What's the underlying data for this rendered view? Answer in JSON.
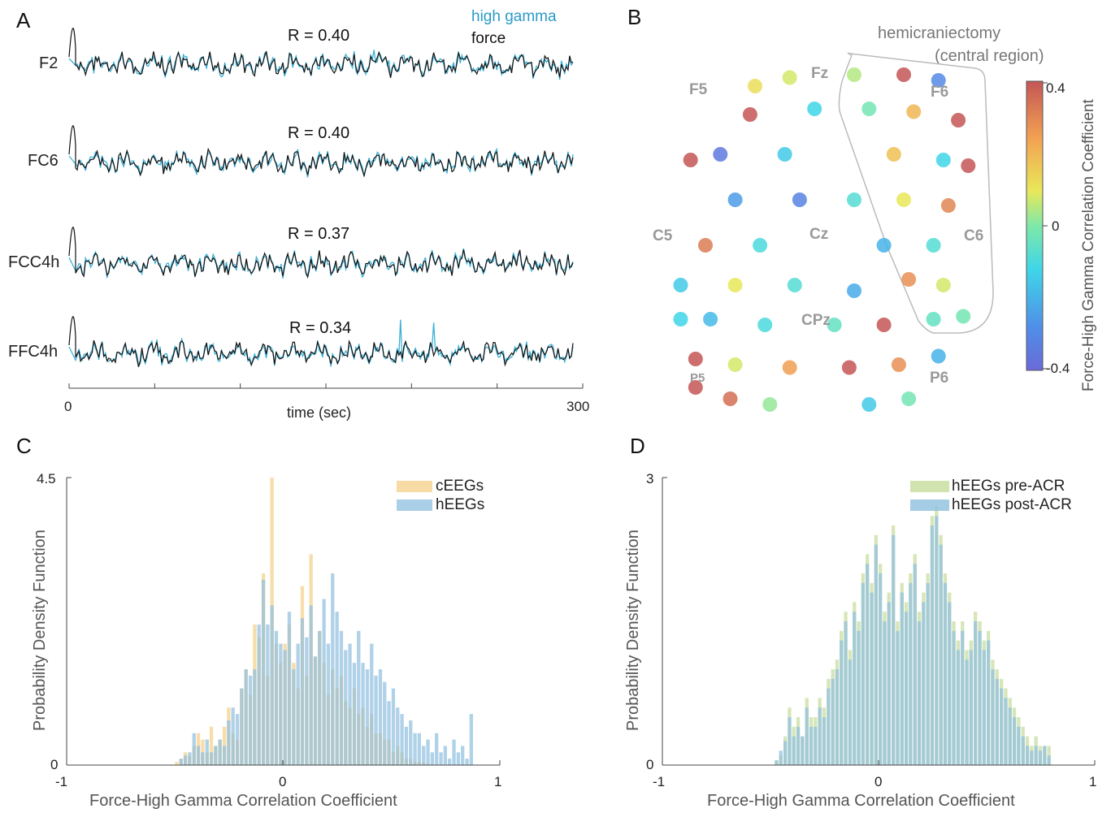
{
  "colors": {
    "high_gamma": "#3ab0d6",
    "force": "#111111",
    "ceegs": "#f4cf86",
    "heegs": "#8fbfdf",
    "pre_acr": "#c6dc9a",
    "post_acr": "#8fbfdf",
    "region_outline": "#bbbbbb"
  },
  "panel_a": {
    "letter": "A",
    "legend_high_gamma": "high gamma",
    "legend_force": "force",
    "traces": [
      {
        "label": "F2",
        "r": "R = 0.40"
      },
      {
        "label": "FC6",
        "r": "R = 0.40"
      },
      {
        "label": "FCC4h",
        "r": "R = 0.37"
      },
      {
        "label": "FFC4h",
        "r": "R = 0.34"
      }
    ],
    "x_tick_start": "0",
    "x_tick_end": "300",
    "xlabel": "time (sec)"
  },
  "panel_b": {
    "letter": "B",
    "region_label_1": "hemicraniectomy",
    "region_label_2": "(central region)",
    "colorbar_title": "Force-High Gamma Correlation Coefficient",
    "colorbar_ticks": [
      "0.4",
      "0",
      "-0.4"
    ],
    "colorbar_range": [
      -0.4,
      0.4
    ],
    "electrode_labels": [
      "Fz",
      "F5",
      "F6",
      "C5",
      "Cz",
      "C6",
      "CPz",
      "P5",
      "P6"
    ],
    "electrodes": [
      {
        "col": 3,
        "row": 0,
        "v": 0.05
      },
      {
        "col": 4,
        "row": 0,
        "v": 0.42
      },
      {
        "col": 4.7,
        "row": 0.1,
        "v": -0.3
      },
      {
        "col": 1,
        "row": 0.2,
        "v": 0.12
      },
      {
        "col": 1.7,
        "row": 0.05,
        "v": 0.08
      },
      {
        "col": 0.9,
        "row": 0.7,
        "v": 0.45
      },
      {
        "col": 2.2,
        "row": 0.6,
        "v": -0.12
      },
      {
        "col": 3.3,
        "row": 0.6,
        "v": -0.02
      },
      {
        "col": 4.2,
        "row": 0.65,
        "v": 0.2
      },
      {
        "col": 5.1,
        "row": 0.8,
        "v": 0.43
      },
      {
        "col": -0.3,
        "row": 1.5,
        "v": 0.4
      },
      {
        "col": 0.3,
        "row": 1.4,
        "v": -0.35
      },
      {
        "col": 1.6,
        "row": 1.4,
        "v": -0.15
      },
      {
        "col": 3.8,
        "row": 1.4,
        "v": 0.18
      },
      {
        "col": 4.8,
        "row": 1.5,
        "v": -0.12
      },
      {
        "col": 5.3,
        "row": 1.6,
        "v": 0.45
      },
      {
        "col": 0.6,
        "row": 2.2,
        "v": -0.25
      },
      {
        "col": 1.9,
        "row": 2.2,
        "v": -0.32
      },
      {
        "col": 3.0,
        "row": 2.2,
        "v": -0.08
      },
      {
        "col": 4.0,
        "row": 2.2,
        "v": 0.1
      },
      {
        "col": 4.9,
        "row": 2.3,
        "v": 0.3
      },
      {
        "col": 0.0,
        "row": 3.0,
        "v": 0.32
      },
      {
        "col": 1.1,
        "row": 3.0,
        "v": -0.1
      },
      {
        "col": 3.6,
        "row": 3.0,
        "v": -0.2
      },
      {
        "col": 4.6,
        "row": 3.0,
        "v": -0.08
      },
      {
        "col": -0.5,
        "row": 3.7,
        "v": -0.15
      },
      {
        "col": 0.6,
        "row": 3.7,
        "v": 0.1
      },
      {
        "col": 1.8,
        "row": 3.7,
        "v": -0.08
      },
      {
        "col": 3.0,
        "row": 3.8,
        "v": -0.22
      },
      {
        "col": 4.1,
        "row": 3.6,
        "v": 0.28
      },
      {
        "col": 4.8,
        "row": 3.7,
        "v": 0.08
      },
      {
        "col": -0.5,
        "row": 4.3,
        "v": -0.12
      },
      {
        "col": 0.1,
        "row": 4.3,
        "v": -0.18
      },
      {
        "col": 1.2,
        "row": 4.4,
        "v": -0.1
      },
      {
        "col": 2.6,
        "row": 4.4,
        "v": -0.05
      },
      {
        "col": 3.6,
        "row": 4.4,
        "v": 0.42
      },
      {
        "col": 4.6,
        "row": 4.3,
        "v": -0.05
      },
      {
        "col": 5.2,
        "row": 4.25,
        "v": -0.02
      },
      {
        "col": -0.2,
        "row": 5.0,
        "v": 0.45
      },
      {
        "col": 0.6,
        "row": 5.1,
        "v": 0.08
      },
      {
        "col": 1.7,
        "row": 5.15,
        "v": 0.25
      },
      {
        "col": 2.9,
        "row": 5.15,
        "v": 0.42
      },
      {
        "col": 3.9,
        "row": 5.1,
        "v": 0.28
      },
      {
        "col": 4.7,
        "row": 4.95,
        "v": -0.2
      },
      {
        "col": -0.2,
        "row": 5.5,
        "v": 0.45
      },
      {
        "col": 0.5,
        "row": 5.7,
        "v": 0.35
      },
      {
        "col": 1.3,
        "row": 5.8,
        "v": 0.02
      },
      {
        "col": 3.3,
        "row": 5.8,
        "v": -0.15
      },
      {
        "col": 4.1,
        "row": 5.7,
        "v": -0.02
      }
    ]
  },
  "chart_data": [
    {
      "type": "bar",
      "panel": "C",
      "xlabel": "Force-High Gamma Correlation Coefficient",
      "ylabel": "Probability Density Function",
      "xlim": [
        -1,
        1
      ],
      "ylim": [
        0,
        4.5
      ],
      "x_ticks": [
        "-1",
        "0",
        "1"
      ],
      "y_ticks": [
        "0",
        "4.5"
      ],
      "bin_width": 0.02,
      "bin_start": -0.5,
      "series": [
        {
          "name": "cEEGs",
          "values": [
            0.05,
            0.1,
            0.2,
            0.15,
            0.3,
            0.5,
            0.4,
            0.2,
            0.6,
            0.3,
            0.4,
            0.6,
            0.9,
            0.5,
            0.4,
            1.2,
            1.5,
            1.1,
            2.2,
            2.0,
            3.0,
            1.4,
            4.5,
            1.9,
            1.6,
            1.9,
            2.2,
            1.6,
            1.2,
            2.8,
            1.4,
            3.3,
            1.7,
            2.1,
            1.6,
            1.1,
            1.5,
            1.2,
            1.4,
            1.0,
            0.9,
            1.2,
            0.8,
            0.9,
            0.6,
            0.8,
            0.5,
            0.5,
            0.4,
            0.4,
            0.2,
            0.3,
            0.2,
            0.1,
            0.1,
            0.05,
            0.05,
            0.05,
            0.02
          ]
        },
        {
          "name": "hEEGs",
          "values": [
            0.0,
            0.1,
            0.15,
            0.2,
            0.5,
            0.3,
            0.2,
            0.4,
            0.2,
            0.3,
            0.4,
            0.3,
            0.7,
            0.9,
            0.8,
            1.2,
            1.5,
            1.4,
            1.5,
            2.2,
            2.9,
            2.2,
            2.5,
            2.1,
            1.9,
            1.8,
            2.4,
            1.5,
            1.9,
            2.3,
            2.0,
            2.5,
            1.7,
            2.1,
            2.6,
            1.9,
            3.0,
            2.4,
            2.1,
            1.8,
            1.9,
            1.6,
            2.1,
            1.6,
            1.5,
            1.9,
            1.4,
            1.5,
            1.3,
            1.0,
            1.2,
            0.9,
            0.8,
            0.6,
            0.7,
            0.5,
            0.5,
            0.3,
            0.4,
            0.2,
            0.5,
            0.2,
            0.3,
            0.1,
            0.4,
            0.2,
            0.3,
            0.1,
            0.8
          ]
        }
      ]
    },
    {
      "type": "bar",
      "panel": "D",
      "xlabel": "Force-High Gamma Correlation Coefficient",
      "ylabel": "Probability Density Function",
      "xlim": [
        -1,
        1
      ],
      "ylim": [
        0,
        3
      ],
      "x_ticks": [
        "-1",
        "0",
        "1"
      ],
      "y_ticks": [
        "0",
        "3"
      ],
      "bin_width": 0.02,
      "bin_start": -0.48,
      "series": [
        {
          "name": "hEEGs pre-ACR",
          "values": [
            0.05,
            0.1,
            0.3,
            0.6,
            0.4,
            0.5,
            0.3,
            0.7,
            0.5,
            0.5,
            0.7,
            0.6,
            0.9,
            1.0,
            1.1,
            1.4,
            1.6,
            1.2,
            1.7,
            1.5,
            2.0,
            2.2,
            1.9,
            2.4,
            2.1,
            1.6,
            1.8,
            2.5,
            1.5,
            1.9,
            1.7,
            2.0,
            2.2,
            1.6,
            1.8,
            2.0,
            2.6,
            2.7,
            2.4,
            2.0,
            1.8,
            1.5,
            1.3,
            1.5,
            1.2,
            1.3,
            1.6,
            1.5,
            1.3,
            1.4,
            1.1,
            1.0,
            0.9,
            0.8,
            0.7,
            0.6,
            0.5,
            0.4,
            0.3,
            0.2,
            0.3,
            0.2,
            0.2,
            0.2
          ]
        },
        {
          "name": "hEEGs post-ACR",
          "values": [
            0.05,
            0.15,
            0.25,
            0.5,
            0.3,
            0.4,
            0.3,
            0.6,
            0.4,
            0.4,
            0.6,
            0.5,
            0.8,
            0.9,
            1.0,
            1.3,
            1.5,
            1.1,
            1.6,
            1.4,
            1.9,
            2.1,
            1.8,
            2.3,
            2.0,
            1.5,
            1.7,
            2.4,
            1.4,
            1.8,
            1.6,
            1.9,
            2.1,
            1.5,
            1.7,
            1.9,
            2.5,
            2.6,
            2.3,
            1.9,
            1.7,
            1.4,
            1.2,
            1.4,
            1.1,
            1.2,
            1.5,
            1.4,
            1.2,
            1.3,
            1.0,
            0.9,
            0.8,
            0.7,
            0.6,
            0.5,
            0.4,
            0.3,
            0.2,
            0.15,
            0.2,
            0.15,
            0.2,
            0.1
          ]
        }
      ]
    }
  ]
}
